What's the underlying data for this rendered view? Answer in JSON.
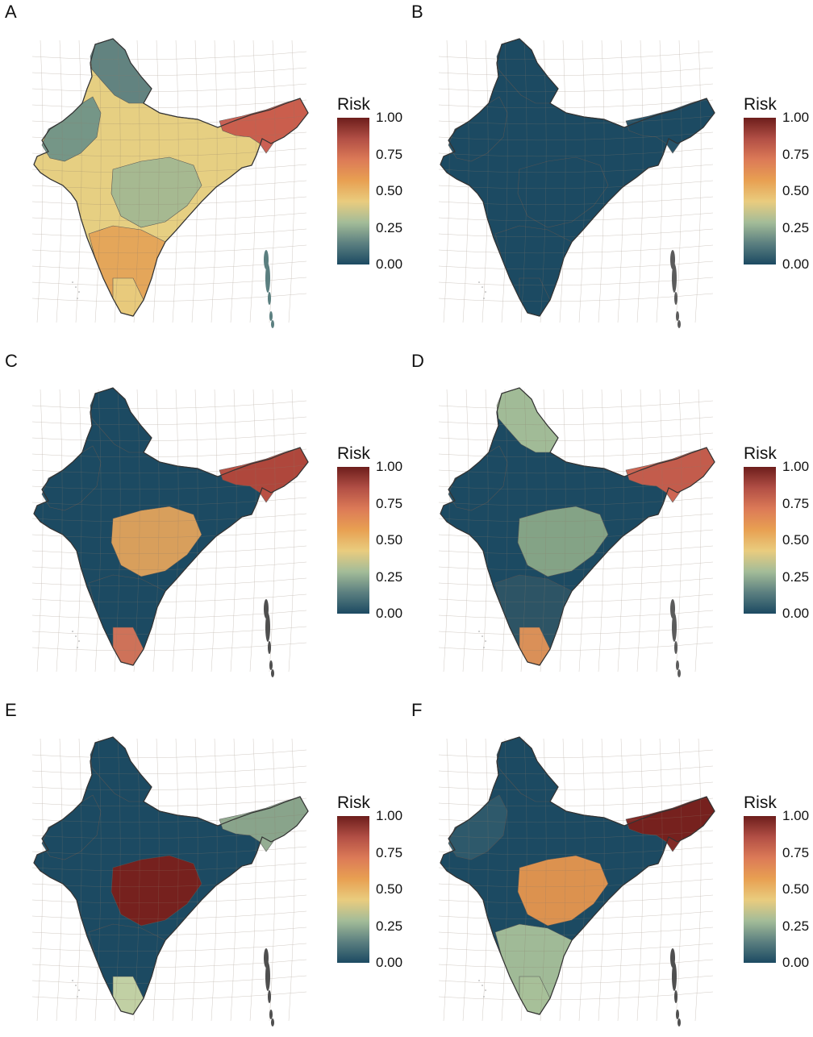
{
  "legend": {
    "title": "Risk",
    "ticks": [
      "1.00",
      "0.75",
      "0.50",
      "0.25",
      "0.00"
    ],
    "colors": [
      "#1c4a62",
      "#5b7f80",
      "#a3bc98",
      "#e9cc7e",
      "#e8a052",
      "#dc7a57",
      "#b24f45",
      "#6d1e1c"
    ]
  },
  "panels": [
    {
      "letter": "A",
      "north": "#5b7f80",
      "northwest": "#6f9488",
      "central": "#e6cf82",
      "middle": "#a3b892",
      "south": "#e4a458",
      "tip": "#e9cc7e",
      "northeast": "#c9584b",
      "island": "#5b7f80"
    },
    {
      "letter": "B",
      "north": "#1c4a62",
      "northwest": "#1c4a62",
      "central": "#1c4a62",
      "middle": "#1c4a62",
      "south": "#1c4a62",
      "tip": "#1c4a62",
      "northeast": "#1c4a62",
      "island": "#5b5b5b"
    },
    {
      "letter": "C",
      "north": "#1c4a62",
      "northwest": "#1c4a62",
      "central": "#1c4a62",
      "middle": "#e3a45c",
      "south": "#1c4a62",
      "tip": "#d87559",
      "northeast": "#b7473b",
      "island": "#4f4f4f"
    },
    {
      "letter": "D",
      "north": "#a9c29a",
      "northwest": "#1c4a62",
      "central": "#1c4a62",
      "middle": "#8aa888",
      "south": "#2e5566",
      "tip": "#e49458",
      "northeast": "#cc5e4b",
      "island": "#5b5b5b"
    },
    {
      "letter": "E",
      "north": "#1c4a62",
      "northwest": "#1c4a62",
      "central": "#1c4a62",
      "middle": "#7b1f1b",
      "south": "#1c4a62",
      "tip": "#cad8a8",
      "northeast": "#8fa98e",
      "island": "#4f4f4f"
    },
    {
      "letter": "F",
      "north": "#1c4a62",
      "northwest": "#2f5a6c",
      "central": "#1c4a62",
      "middle": "#e7964f",
      "south": "#a8c19a",
      "tip": "#a8c19a",
      "northeast": "#7b1f1b",
      "island": "#4f4f4f"
    }
  ]
}
